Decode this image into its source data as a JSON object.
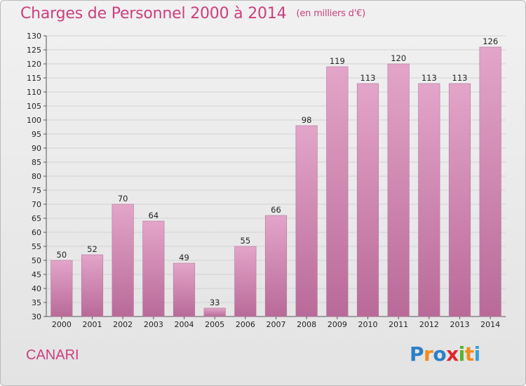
{
  "title": "Charges de Personnel 2000 à 2014",
  "subtitle": "(en milliers d'€)",
  "place": "CANARI",
  "logo": {
    "letters": [
      "P",
      "r",
      "o",
      "x",
      "i",
      "t",
      "i"
    ],
    "colors": [
      "#2a7fc9",
      "#f08c1a",
      "#2a7fc9",
      "#e2262a",
      "#58b12e",
      "#f08c1a",
      "#3aa0d9"
    ]
  },
  "colors": {
    "bar_top": "#e3a5c9",
    "bar_bottom": "#b96a98",
    "title": "#cc3e7e"
  },
  "chart_data": {
    "type": "bar",
    "categories": [
      "2000",
      "2001",
      "2002",
      "2003",
      "2004",
      "2005",
      "2006",
      "2007",
      "2008",
      "2009",
      "2010",
      "2011",
      "2012",
      "2013",
      "2014"
    ],
    "values": [
      50,
      52,
      70,
      64,
      49,
      33,
      55,
      66,
      98,
      119,
      113,
      120,
      113,
      113,
      126
    ],
    "ylim": [
      30,
      130
    ],
    "yticks": [
      30,
      35,
      40,
      45,
      50,
      55,
      60,
      65,
      70,
      75,
      80,
      85,
      90,
      95,
      100,
      105,
      110,
      115,
      120,
      125,
      130
    ],
    "grid": true
  }
}
